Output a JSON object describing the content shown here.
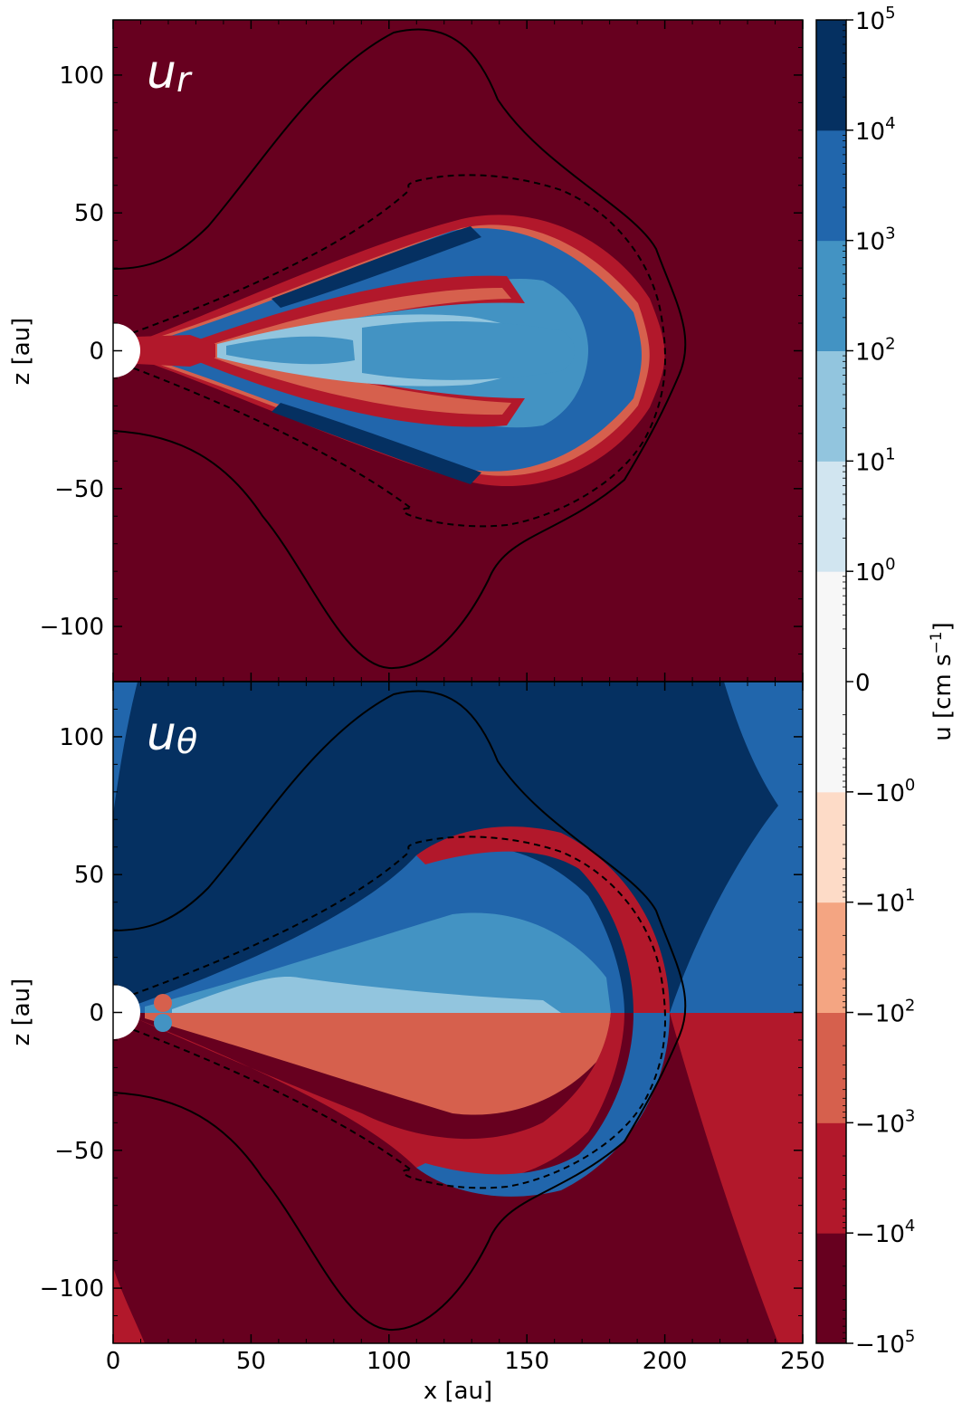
{
  "chart_data": {
    "type": "heatmap",
    "panels": [
      {
        "id": "top",
        "label_main": "u",
        "label_sub": "r",
        "xlim": [
          0,
          250
        ],
        "ylim": [
          -120,
          120
        ],
        "ylabel": "z [au]",
        "yticks": [
          -100,
          -50,
          0,
          50,
          100
        ]
      },
      {
        "id": "bottom",
        "label_main": "u",
        "label_sub": "θ",
        "xlim": [
          0,
          250
        ],
        "ylim": [
          -120,
          120
        ],
        "ylabel": "z [au]",
        "xlabel": "x [au]",
        "xticks": [
          0,
          50,
          100,
          150,
          200,
          250
        ],
        "yticks": [
          -100,
          -50,
          0,
          50,
          100
        ]
      }
    ],
    "colorbar": {
      "label_main": "u [cm s",
      "label_exp": "−1",
      "label_end": "]",
      "levels": [
        "−10⁵",
        "−10⁴",
        "−10³",
        "−10²",
        "−10¹",
        "−10⁰",
        "0",
        "10⁰",
        "10¹",
        "10²",
        "10³",
        "10⁴",
        "10⁵"
      ],
      "ticks": [
        {
          "b": "−10",
          "e": "5"
        },
        {
          "b": "−10",
          "e": "4"
        },
        {
          "b": "−10",
          "e": "3"
        },
        {
          "b": "−10",
          "e": "2"
        },
        {
          "b": "−10",
          "e": "1"
        },
        {
          "b": "−10",
          "e": "0"
        },
        {
          "b": "0",
          "e": ""
        },
        {
          "b": "10",
          "e": "0"
        },
        {
          "b": "10",
          "e": "1"
        },
        {
          "b": "10",
          "e": "2"
        },
        {
          "b": "10",
          "e": "3"
        },
        {
          "b": "10",
          "e": "4"
        },
        {
          "b": "10",
          "e": "5"
        }
      ],
      "colors": [
        "#67001f",
        "#b2182b",
        "#d6604d",
        "#f4a582",
        "#fddbc7",
        "#f7f7f7",
        "#f7f7f7",
        "#d1e5f0",
        "#92c5de",
        "#4393c3",
        "#2166ac",
        "#053061"
      ]
    },
    "contours": {
      "solid": "outer boundary",
      "dashed": "inner boundary"
    }
  }
}
